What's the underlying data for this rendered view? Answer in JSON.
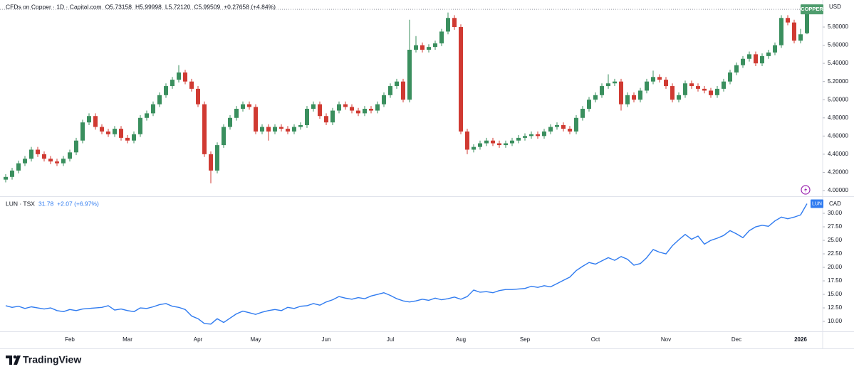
{
  "chart_data": [
    {
      "type": "candlestick",
      "title": "CFDs on Copper · 1D · Capital.com",
      "ohlc_text": [
        "O5.73158",
        "H5.99998",
        "L5.72120",
        "C5.99509",
        "+0.27658 (+4.84%)"
      ],
      "currency": "USD",
      "series": [
        {
          "name": "COPPER",
          "up_color": "#3a8f5e",
          "down_color": "#d03a32",
          "open": [
            4.12,
            4.15,
            4.22,
            4.3,
            4.35,
            4.45,
            4.4,
            4.35,
            4.32,
            4.3,
            4.35,
            4.42,
            4.55,
            4.75,
            4.82,
            4.7,
            4.65,
            4.62,
            4.68,
            4.58,
            4.55,
            4.62,
            4.8,
            4.85,
            4.95,
            5.05,
            5.15,
            5.22,
            5.3,
            5.2,
            5.12,
            4.95,
            4.4,
            4.22,
            4.5,
            4.7,
            4.8,
            4.9,
            4.95,
            4.92,
            4.65,
            4.7,
            4.65,
            4.7,
            4.68,
            4.65,
            4.7,
            4.72,
            4.9,
            4.95,
            4.82,
            4.75,
            4.88,
            4.95,
            4.92,
            4.88,
            4.85,
            4.9,
            4.88,
            4.95,
            5.05,
            5.15,
            5.2,
            5.0,
            5.55,
            5.6,
            5.55,
            5.58,
            5.62,
            5.75,
            5.9,
            5.8,
            4.65,
            4.45,
            4.48,
            4.52,
            4.55,
            4.52,
            4.5,
            4.52,
            4.55,
            4.58,
            4.6,
            4.62,
            4.6,
            4.65,
            4.7,
            4.72,
            4.68,
            4.65,
            4.8,
            4.9,
            5.0,
            5.05,
            5.15,
            5.18,
            5.2,
            4.95,
            5.05,
            5.0,
            5.1,
            5.2,
            5.25,
            5.22,
            5.15,
            5.0,
            5.05,
            5.18,
            5.15,
            5.12,
            5.1,
            5.05,
            5.12,
            5.2,
            5.3,
            5.38,
            5.45,
            5.5,
            5.4,
            5.48,
            5.52,
            5.6,
            5.9,
            5.85,
            5.65,
            5.73158
          ],
          "high": [
            4.18,
            4.25,
            4.33,
            4.38,
            4.48,
            4.48,
            4.43,
            4.38,
            4.35,
            4.38,
            4.45,
            4.58,
            4.78,
            4.85,
            4.85,
            4.73,
            4.68,
            4.71,
            4.71,
            4.61,
            4.65,
            4.83,
            4.88,
            4.98,
            5.08,
            5.18,
            5.25,
            5.38,
            5.33,
            5.23,
            5.15,
            4.98,
            4.43,
            4.53,
            4.73,
            4.83,
            4.93,
            4.98,
            4.98,
            4.95,
            4.73,
            4.73,
            4.73,
            4.73,
            4.71,
            4.73,
            4.75,
            4.93,
            4.98,
            4.98,
            4.85,
            4.91,
            4.98,
            4.98,
            4.95,
            4.91,
            4.93,
            4.93,
            4.98,
            5.08,
            5.18,
            5.23,
            5.23,
            5.88,
            5.7,
            5.63,
            5.61,
            5.65,
            5.78,
            5.96,
            5.93,
            5.83,
            4.68,
            4.51,
            4.55,
            4.58,
            4.58,
            4.55,
            4.55,
            4.58,
            4.61,
            4.63,
            4.65,
            4.65,
            4.68,
            4.73,
            4.75,
            4.75,
            4.71,
            4.83,
            4.93,
            5.03,
            5.08,
            5.18,
            5.28,
            5.23,
            5.23,
            5.08,
            5.08,
            5.13,
            5.23,
            5.32,
            5.28,
            5.25,
            5.18,
            5.08,
            5.21,
            5.21,
            5.18,
            5.15,
            5.13,
            5.15,
            5.23,
            5.33,
            5.41,
            5.48,
            5.53,
            5.53,
            5.51,
            5.55,
            5.63,
            5.93,
            5.93,
            5.88,
            5.78,
            5.99998
          ],
          "low": [
            4.09,
            4.12,
            4.19,
            4.27,
            4.32,
            4.37,
            4.32,
            4.29,
            4.27,
            4.27,
            4.32,
            4.39,
            4.52,
            4.72,
            4.67,
            4.62,
            4.59,
            4.59,
            4.55,
            4.52,
            4.52,
            4.59,
            4.77,
            4.82,
            4.92,
            5.02,
            5.12,
            5.19,
            5.17,
            5.09,
            4.92,
            4.37,
            4.08,
            4.19,
            4.47,
            4.67,
            4.77,
            4.87,
            4.89,
            4.62,
            4.62,
            4.55,
            4.62,
            4.65,
            4.62,
            4.62,
            4.67,
            4.69,
            4.87,
            4.79,
            4.72,
            4.72,
            4.85,
            4.89,
            4.85,
            4.82,
            4.82,
            4.85,
            4.85,
            4.92,
            5.02,
            5.12,
            4.97,
            4.97,
            5.52,
            5.52,
            5.52,
            5.55,
            5.59,
            5.72,
            5.77,
            4.62,
            4.4,
            4.42,
            4.45,
            4.49,
            4.49,
            4.47,
            4.47,
            4.49,
            4.52,
            4.55,
            4.57,
            4.57,
            4.57,
            4.62,
            4.67,
            4.65,
            4.62,
            4.62,
            4.77,
            4.87,
            4.97,
            5.02,
            5.12,
            5.15,
            4.88,
            4.92,
            4.97,
            4.97,
            5.07,
            5.17,
            5.19,
            5.12,
            4.97,
            4.97,
            5.02,
            5.12,
            5.09,
            5.07,
            5.02,
            5.02,
            5.09,
            5.17,
            5.27,
            5.35,
            5.42,
            5.37,
            5.37,
            5.45,
            5.49,
            5.57,
            5.82,
            5.62,
            5.62,
            5.7212
          ],
          "close": [
            4.15,
            4.22,
            4.3,
            4.35,
            4.45,
            4.4,
            4.35,
            4.32,
            4.3,
            4.35,
            4.42,
            4.55,
            4.75,
            4.82,
            4.7,
            4.65,
            4.62,
            4.68,
            4.58,
            4.55,
            4.62,
            4.8,
            4.85,
            4.95,
            5.05,
            5.15,
            5.22,
            5.3,
            5.2,
            5.12,
            4.95,
            4.4,
            4.22,
            4.5,
            4.7,
            4.8,
            4.9,
            4.95,
            4.92,
            4.65,
            4.7,
            4.65,
            4.7,
            4.68,
            4.65,
            4.7,
            4.72,
            4.9,
            4.95,
            4.82,
            4.75,
            4.88,
            4.95,
            4.92,
            4.88,
            4.85,
            4.9,
            4.88,
            4.95,
            5.05,
            5.15,
            5.2,
            5.0,
            5.55,
            5.6,
            5.55,
            5.58,
            5.62,
            5.75,
            5.9,
            5.8,
            4.65,
            4.45,
            4.48,
            4.52,
            4.55,
            4.52,
            4.5,
            4.52,
            4.55,
            4.58,
            4.6,
            4.62,
            4.6,
            4.65,
            4.7,
            4.72,
            4.68,
            4.65,
            4.8,
            4.9,
            5.0,
            5.05,
            5.15,
            5.18,
            5.2,
            4.95,
            5.05,
            5.0,
            5.1,
            5.2,
            5.25,
            5.22,
            5.15,
            5.0,
            5.05,
            5.18,
            5.15,
            5.12,
            5.1,
            5.05,
            5.12,
            5.2,
            5.3,
            5.38,
            5.45,
            5.5,
            5.4,
            5.48,
            5.52,
            5.6,
            5.9,
            5.85,
            5.65,
            5.72,
            5.99509
          ]
        }
      ],
      "badge_color": "#4f9d6e",
      "ylim": [
        3.945,
        6.035
      ],
      "yticks": [
        {
          "value": 4.0,
          "label": "4.00000"
        },
        {
          "value": 4.2,
          "label": "4.20000"
        },
        {
          "value": 4.4,
          "label": "4.40000"
        },
        {
          "value": 4.6,
          "label": "4.60000"
        },
        {
          "value": 4.8,
          "label": "4.80000"
        },
        {
          "value": 5.0,
          "label": "5.00000"
        },
        {
          "value": 5.2,
          "label": "5.20000"
        },
        {
          "value": 5.4,
          "label": "5.40000"
        },
        {
          "value": 5.6,
          "label": "5.60000"
        },
        {
          "value": 5.8,
          "label": "5.80000"
        }
      ],
      "grid": false
    },
    {
      "type": "line",
      "title": "LUN · TSX",
      "value_text": [
        "31.78",
        "+2.07 (+6.97%)"
      ],
      "currency": "CAD",
      "categories": [
        null,
        null,
        null,
        null,
        null,
        null,
        null,
        null,
        null,
        null,
        "Feb",
        null,
        null,
        null,
        null,
        null,
        null,
        null,
        null,
        "Mar",
        null,
        null,
        null,
        null,
        null,
        null,
        null,
        null,
        null,
        null,
        "Apr",
        null,
        null,
        null,
        null,
        null,
        null,
        null,
        null,
        "May",
        null,
        null,
        null,
        null,
        null,
        null,
        null,
        null,
        null,
        null,
        "Jun",
        null,
        null,
        null,
        null,
        null,
        null,
        null,
        null,
        null,
        "Jul",
        null,
        null,
        null,
        null,
        null,
        null,
        null,
        null,
        null,
        null,
        "Aug",
        null,
        null,
        null,
        null,
        null,
        null,
        null,
        null,
        null,
        "Sep",
        null,
        null,
        null,
        null,
        null,
        null,
        null,
        null,
        null,
        null,
        "Oct",
        null,
        null,
        null,
        null,
        null,
        null,
        null,
        null,
        null,
        null,
        "Nov",
        null,
        null,
        null,
        null,
        null,
        null,
        null,
        null,
        null,
        null,
        "Dec",
        null,
        null,
        null,
        null,
        null,
        null,
        null,
        null,
        null,
        "2026",
        null
      ],
      "series": [
        {
          "name": "LUN",
          "color": "#2f7bf0",
          "values": [
            12.9,
            12.6,
            12.8,
            12.4,
            12.7,
            12.5,
            12.3,
            12.5,
            12.0,
            11.8,
            12.2,
            12.0,
            12.3,
            12.4,
            12.5,
            12.6,
            12.9,
            12.1,
            12.3,
            12.0,
            11.8,
            12.5,
            12.4,
            12.7,
            13.1,
            13.3,
            12.8,
            12.6,
            12.2,
            11.0,
            10.5,
            9.6,
            9.5,
            10.5,
            9.8,
            10.6,
            11.4,
            11.9,
            11.6,
            11.3,
            11.7,
            12.0,
            12.2,
            12.0,
            12.6,
            12.4,
            12.8,
            12.9,
            13.3,
            13.0,
            13.6,
            14.0,
            14.6,
            14.3,
            14.1,
            14.4,
            14.2,
            14.7,
            15.0,
            15.3,
            14.8,
            14.2,
            13.8,
            13.6,
            13.8,
            14.1,
            13.9,
            14.3,
            14.0,
            14.2,
            14.5,
            14.1,
            14.6,
            15.8,
            15.4,
            15.5,
            15.3,
            15.7,
            15.9,
            15.9,
            16.0,
            16.1,
            16.5,
            16.3,
            16.6,
            16.4,
            17.0,
            17.6,
            18.2,
            19.4,
            20.2,
            20.9,
            20.6,
            21.2,
            21.8,
            21.3,
            22.0,
            21.5,
            20.4,
            20.7,
            21.8,
            23.3,
            22.8,
            22.5,
            24.0,
            25.1,
            26.1,
            25.2,
            25.8,
            24.3,
            25.0,
            25.4,
            25.9,
            26.8,
            26.2,
            25.5,
            26.8,
            27.5,
            27.8,
            27.6,
            28.6,
            29.3,
            29.0,
            29.3,
            29.71,
            31.78
          ]
        }
      ],
      "ylim": [
        8.16,
        32.9
      ],
      "yticks": [
        {
          "value": 10,
          "label": "10.00"
        },
        {
          "value": 12.5,
          "label": "12.50"
        },
        {
          "value": 15,
          "label": "15.00"
        },
        {
          "value": 17.5,
          "label": "17.50"
        },
        {
          "value": 20,
          "label": "20.00"
        },
        {
          "value": 22.5,
          "label": "22.50"
        },
        {
          "value": 25,
          "label": "25.00"
        },
        {
          "value": 27.5,
          "label": "27.50"
        },
        {
          "value": 30,
          "label": "30.00"
        }
      ],
      "grid": false
    }
  ],
  "brand": "TradingView"
}
